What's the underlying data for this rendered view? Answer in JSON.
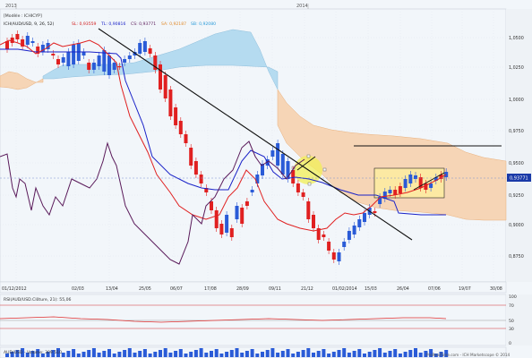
{
  "years": [
    "2013",
    "2014"
  ],
  "legend": {
    "model": "[Modèle : ICHICYP]",
    "ind_name": "ICH(AUD/USD, 9, 26, 52)",
    "sl": "SL: 0,93559",
    "tl": "TL: 0,90816",
    "cs": "CS: 0,93771",
    "sa": "SA: 0,92187",
    "sb": "SB: 0,92080"
  },
  "price_ticks": [
    "1,0500",
    "1,0250",
    "1,0000",
    "0,9750",
    "0,9500",
    "0,9250",
    "0,9000",
    "0,8750"
  ],
  "current_price": "0,93771",
  "date_ticks": [
    "01/12/2012",
    "02/03",
    "13/04",
    "25/05",
    "06/07",
    "17/08",
    "28/09",
    "09/11",
    "21/12",
    "01/02/2014",
    "15/03",
    "26/04",
    "07/06",
    "19/07",
    "30/08"
  ],
  "rsi": {
    "label": "RSI(AUD/USD.Clôture, 21): 55,06",
    "ticks": [
      "100",
      "70",
      "50",
      "30",
      "0"
    ]
  },
  "volume": {
    "label": "AUD/USD - Volume: 309 510"
  },
  "copyright": "ProRealTime.com - ICH Marketscope © 2014",
  "colors": {
    "bull": "#2a5bd7",
    "bear": "#e02020",
    "tenkan": "#e02020",
    "kijun": "#1a22c8",
    "chikou": "#5a1a5a",
    "kumo_bull": "#aed8ee",
    "kumo_bear": "#f6d2ae",
    "background": "#f2f6fa"
  }
}
